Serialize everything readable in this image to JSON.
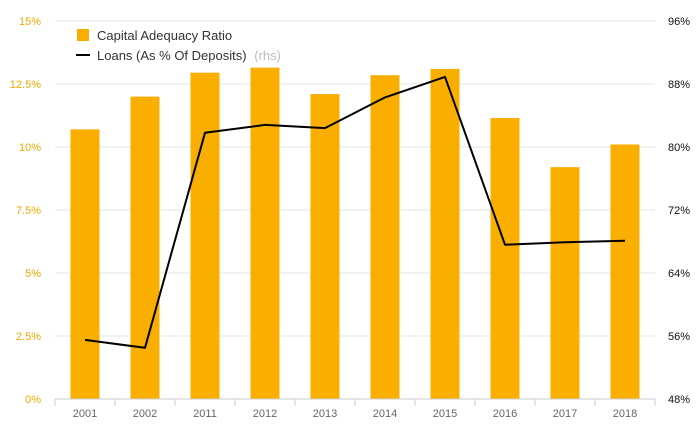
{
  "chart_data": {
    "type": "bar",
    "categories": [
      "2001",
      "2002",
      "2011",
      "2012",
      "2013",
      "2014",
      "2015",
      "2016",
      "2017",
      "2018"
    ],
    "series": [
      {
        "name": "Capital Adequacy Ratio",
        "type": "bar",
        "axis": "left",
        "color": "#f9ae00",
        "values": [
          10.7,
          12.0,
          12.95,
          13.15,
          12.1,
          12.85,
          13.1,
          11.15,
          9.2,
          10.1
        ]
      },
      {
        "name": "Loans (As % Of Deposits)",
        "name_suffix": "(rhs)",
        "type": "line",
        "axis": "right",
        "color": "#000000",
        "values": [
          55.5,
          54.5,
          81.8,
          82.8,
          82.4,
          86.3,
          88.9,
          67.6,
          67.9,
          68.1
        ]
      }
    ],
    "y_left": {
      "lim": [
        0,
        15
      ],
      "ticks": [
        0,
        2.5,
        5,
        7.5,
        10,
        12.5,
        15
      ],
      "tick_labels": [
        "0%",
        "2.5%",
        "5%",
        "7.5%",
        "10%",
        "12.5%",
        "15%"
      ]
    },
    "y_right": {
      "lim": [
        48,
        96
      ],
      "ticks": [
        48,
        56,
        64,
        72,
        80,
        88,
        96
      ],
      "tick_labels": [
        "48%",
        "56%",
        "64%",
        "72%",
        "80%",
        "88%",
        "96%"
      ]
    },
    "grid": true,
    "legend_position": "top-left"
  }
}
